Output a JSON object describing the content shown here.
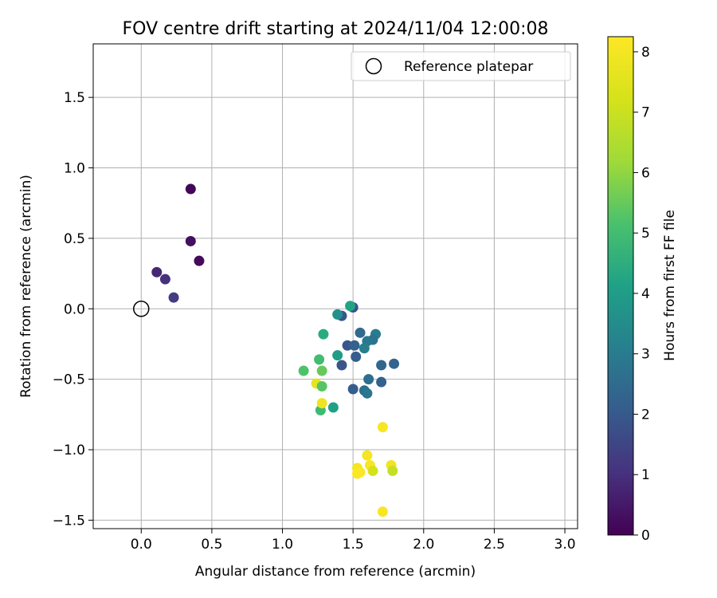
{
  "chart_data": {
    "type": "scatter",
    "title": "FOV centre drift starting at 2024/11/04 12:00:08",
    "xlabel": "Angular distance from reference (arcmin)",
    "ylabel": "Rotation from reference (arcmin)",
    "xlim": [
      -0.34,
      3.09
    ],
    "ylim": [
      -1.56,
      1.88
    ],
    "xticks": [
      0.0,
      0.5,
      1.0,
      1.5,
      2.0,
      2.5,
      3.0
    ],
    "xtick_labels": [
      "0.0",
      "0.5",
      "1.0",
      "1.5",
      "2.0",
      "2.5",
      "3.0"
    ],
    "yticks": [
      -1.5,
      -1.0,
      -0.5,
      0.0,
      0.5,
      1.0,
      1.5
    ],
    "ytick_labels": [
      "−1.5",
      "−1.0",
      "−0.5",
      "0.0",
      "0.5",
      "1.0",
      "1.5"
    ],
    "grid": true,
    "legend": {
      "placement": "top-right",
      "entries": [
        "Reference platepar"
      ]
    },
    "reference_point": {
      "x": 0.0,
      "y": 0.0,
      "label": "Reference platepar"
    },
    "colorbar": {
      "label": "Hours from first FF file",
      "colormap": "viridis",
      "range": [
        0,
        8.25
      ],
      "ticks": [
        0,
        1,
        2,
        3,
        4,
        5,
        6,
        7,
        8
      ],
      "tick_labels": [
        "0",
        "1",
        "2",
        "3",
        "4",
        "5",
        "6",
        "7",
        "8"
      ]
    },
    "points": [
      {
        "x": 0.35,
        "y": 0.85,
        "c": 0.1
      },
      {
        "x": 0.35,
        "y": 0.48,
        "c": 0.3
      },
      {
        "x": 0.41,
        "y": 0.34,
        "c": 0.2
      },
      {
        "x": 0.11,
        "y": 0.26,
        "c": 0.8
      },
      {
        "x": 0.17,
        "y": 0.21,
        "c": 1.0
      },
      {
        "x": 0.23,
        "y": 0.08,
        "c": 1.3
      },
      {
        "x": 1.5,
        "y": 0.01,
        "c": 1.7
      },
      {
        "x": 1.48,
        "y": 0.02,
        "c": 4.2
      },
      {
        "x": 1.42,
        "y": -0.05,
        "c": 1.9
      },
      {
        "x": 1.39,
        "y": -0.04,
        "c": 3.6
      },
      {
        "x": 1.55,
        "y": -0.17,
        "c": 2.5
      },
      {
        "x": 1.66,
        "y": -0.18,
        "c": 3.0
      },
      {
        "x": 1.64,
        "y": -0.22,
        "c": 2.7
      },
      {
        "x": 1.29,
        "y": -0.18,
        "c": 4.4
      },
      {
        "x": 1.6,
        "y": -0.23,
        "c": 2.9
      },
      {
        "x": 1.46,
        "y": -0.26,
        "c": 1.9
      },
      {
        "x": 1.51,
        "y": -0.26,
        "c": 2.2
      },
      {
        "x": 1.58,
        "y": -0.28,
        "c": 3.1
      },
      {
        "x": 1.39,
        "y": -0.33,
        "c": 4.0
      },
      {
        "x": 1.52,
        "y": -0.34,
        "c": 2.1
      },
      {
        "x": 1.26,
        "y": -0.36,
        "c": 5.0
      },
      {
        "x": 1.42,
        "y": -0.4,
        "c": 1.9
      },
      {
        "x": 1.7,
        "y": -0.4,
        "c": 2.4
      },
      {
        "x": 1.79,
        "y": -0.39,
        "c": 2.3
      },
      {
        "x": 1.15,
        "y": -0.44,
        "c": 5.2
      },
      {
        "x": 1.28,
        "y": -0.44,
        "c": 5.5
      },
      {
        "x": 1.61,
        "y": -0.5,
        "c": 2.6
      },
      {
        "x": 1.7,
        "y": -0.52,
        "c": 2.2
      },
      {
        "x": 1.24,
        "y": -0.53,
        "c": 7.6
      },
      {
        "x": 1.28,
        "y": -0.55,
        "c": 5.3
      },
      {
        "x": 1.5,
        "y": -0.57,
        "c": 2.1
      },
      {
        "x": 1.58,
        "y": -0.58,
        "c": 2.6
      },
      {
        "x": 1.6,
        "y": -0.6,
        "c": 2.8
      },
      {
        "x": 1.36,
        "y": -0.7,
        "c": 4.1
      },
      {
        "x": 1.27,
        "y": -0.72,
        "c": 4.9
      },
      {
        "x": 1.28,
        "y": -0.67,
        "c": 7.8
      },
      {
        "x": 1.71,
        "y": -0.84,
        "c": 8.1
      },
      {
        "x": 1.6,
        "y": -1.04,
        "c": 8.0
      },
      {
        "x": 1.62,
        "y": -1.11,
        "c": 8.1
      },
      {
        "x": 1.53,
        "y": -1.13,
        "c": 8.0
      },
      {
        "x": 1.64,
        "y": -1.15,
        "c": 7.2
      },
      {
        "x": 1.55,
        "y": -1.16,
        "c": 8.2
      },
      {
        "x": 1.53,
        "y": -1.17,
        "c": 8.2
      },
      {
        "x": 1.77,
        "y": -1.11,
        "c": 7.9
      },
      {
        "x": 1.78,
        "y": -1.15,
        "c": 6.9
      },
      {
        "x": 1.71,
        "y": -1.44,
        "c": 8.1
      }
    ]
  }
}
